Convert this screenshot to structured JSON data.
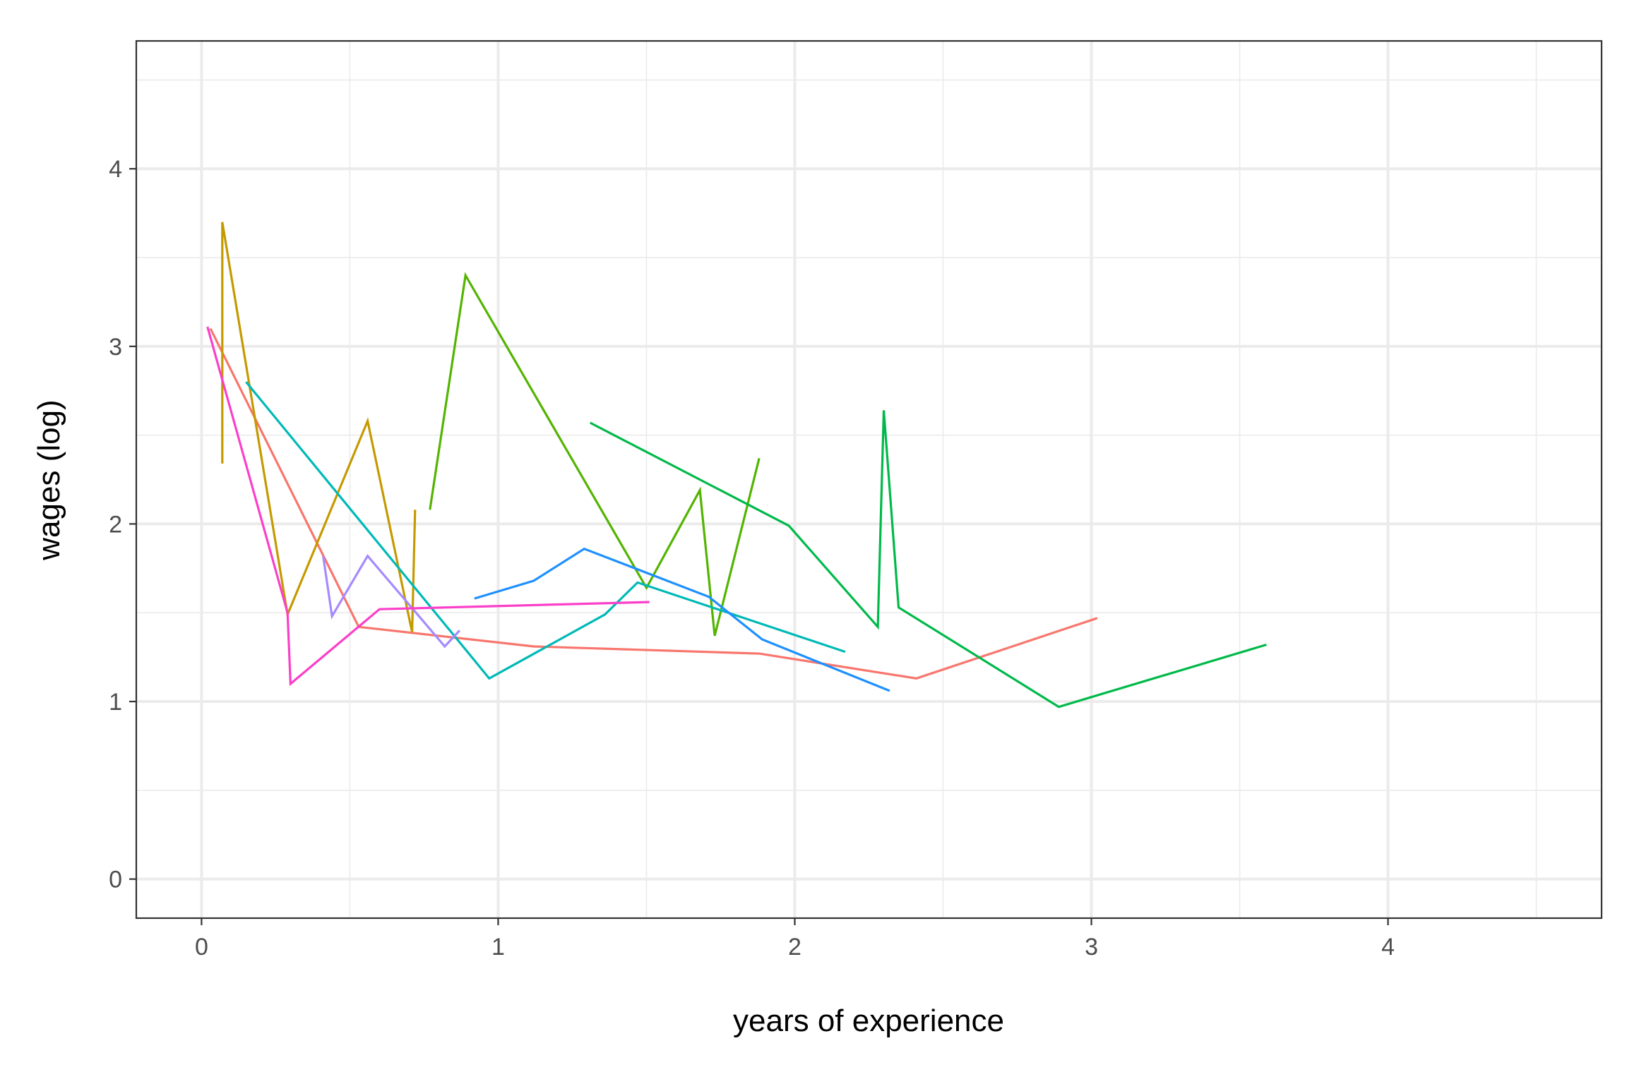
{
  "chart_data": {
    "type": "line",
    "xlabel": "years of experience",
    "ylabel": "wages (log)",
    "xlim": [
      -0.22,
      4.72
    ],
    "ylim": [
      -0.22,
      4.72
    ],
    "x_ticks": [
      0,
      1,
      2,
      3,
      4
    ],
    "y_ticks": [
      0,
      1,
      2,
      3,
      4
    ],
    "x_tick_labels": [
      "0",
      "1",
      "2",
      "3",
      "4"
    ],
    "y_tick_labels": [
      "0",
      "1",
      "2",
      "3",
      "4"
    ],
    "grid": true,
    "legend": "none",
    "series": [
      {
        "color": "#F8766D",
        "x": [
          0.03,
          0.53,
          1.12,
          1.88,
          2.41,
          3.02
        ],
        "y": [
          3.1,
          1.42,
          1.31,
          1.27,
          1.13,
          1.47
        ]
      },
      {
        "color": "#C49A00",
        "x": [
          0.07,
          0.07,
          0.29,
          0.56,
          0.71,
          0.72
        ],
        "y": [
          2.34,
          3.7,
          1.49,
          2.58,
          1.39,
          2.08
        ]
      },
      {
        "color": "#53B400",
        "x": [
          0.77,
          0.89,
          1.5,
          1.68,
          1.73,
          1.88
        ],
        "y": [
          2.08,
          3.4,
          1.64,
          2.19,
          1.37,
          2.37
        ]
      },
      {
        "color": "#00B94A",
        "x": [
          1.31,
          1.98,
          2.28,
          2.3,
          2.35,
          2.89,
          3.59
        ],
        "y": [
          2.57,
          1.99,
          1.42,
          2.64,
          1.53,
          0.97,
          1.32
        ]
      },
      {
        "color": "#00B9B7",
        "x": [
          0.15,
          0.97,
          1.36,
          1.47,
          2.17
        ],
        "y": [
          2.8,
          1.13,
          1.49,
          1.67,
          1.28
        ]
      },
      {
        "color": "#1E90FF",
        "x": [
          0.92,
          1.12,
          1.29,
          1.71,
          1.89,
          2.32
        ],
        "y": [
          1.58,
          1.68,
          1.86,
          1.59,
          1.35,
          1.06
        ]
      },
      {
        "color": "#A58AFF",
        "x": [
          0.41,
          0.44,
          0.56,
          0.82,
          0.87
        ],
        "y": [
          1.82,
          1.48,
          1.82,
          1.31,
          1.4
        ]
      },
      {
        "color": "#FB3FC9",
        "x": [
          0.02,
          0.29,
          0.3,
          0.6,
          1.51
        ],
        "y": [
          3.11,
          1.5,
          1.1,
          1.52,
          1.56
        ]
      }
    ]
  }
}
